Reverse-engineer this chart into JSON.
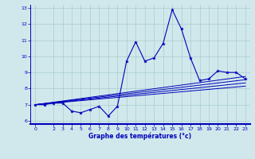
{
  "xlabel": "Graphe des températures (°c)",
  "bg_color": "#d0e8ec",
  "grid_color": "#aacccc",
  "line_color": "#0000bb",
  "axis_color": "#0000bb",
  "xlim": [
    -0.5,
    23.5
  ],
  "ylim": [
    5.8,
    13.2
  ],
  "yticks": [
    6,
    7,
    8,
    9,
    10,
    11,
    12,
    13
  ],
  "xticks": [
    0,
    2,
    3,
    4,
    5,
    6,
    7,
    8,
    9,
    10,
    11,
    12,
    13,
    14,
    15,
    16,
    17,
    18,
    19,
    20,
    21,
    22,
    23
  ],
  "temp_x": [
    0,
    1,
    2,
    3,
    4,
    5,
    6,
    7,
    8,
    9,
    10,
    11,
    12,
    13,
    14,
    15,
    16,
    17,
    18,
    19,
    20,
    21,
    22,
    23
  ],
  "temp_y": [
    7.0,
    7.0,
    7.1,
    7.1,
    6.6,
    6.5,
    6.7,
    6.9,
    6.3,
    6.9,
    9.7,
    10.9,
    9.7,
    9.9,
    10.8,
    12.9,
    11.7,
    9.9,
    8.5,
    8.6,
    9.1,
    9.0,
    9.0,
    8.6
  ],
  "smooth_lines": [
    {
      "x": [
        0,
        23
      ],
      "y": [
        7.0,
        8.15
      ]
    },
    {
      "x": [
        0,
        23
      ],
      "y": [
        7.0,
        8.35
      ]
    },
    {
      "x": [
        0,
        23
      ],
      "y": [
        7.0,
        8.55
      ]
    },
    {
      "x": [
        0,
        23
      ],
      "y": [
        7.0,
        8.75
      ]
    }
  ]
}
